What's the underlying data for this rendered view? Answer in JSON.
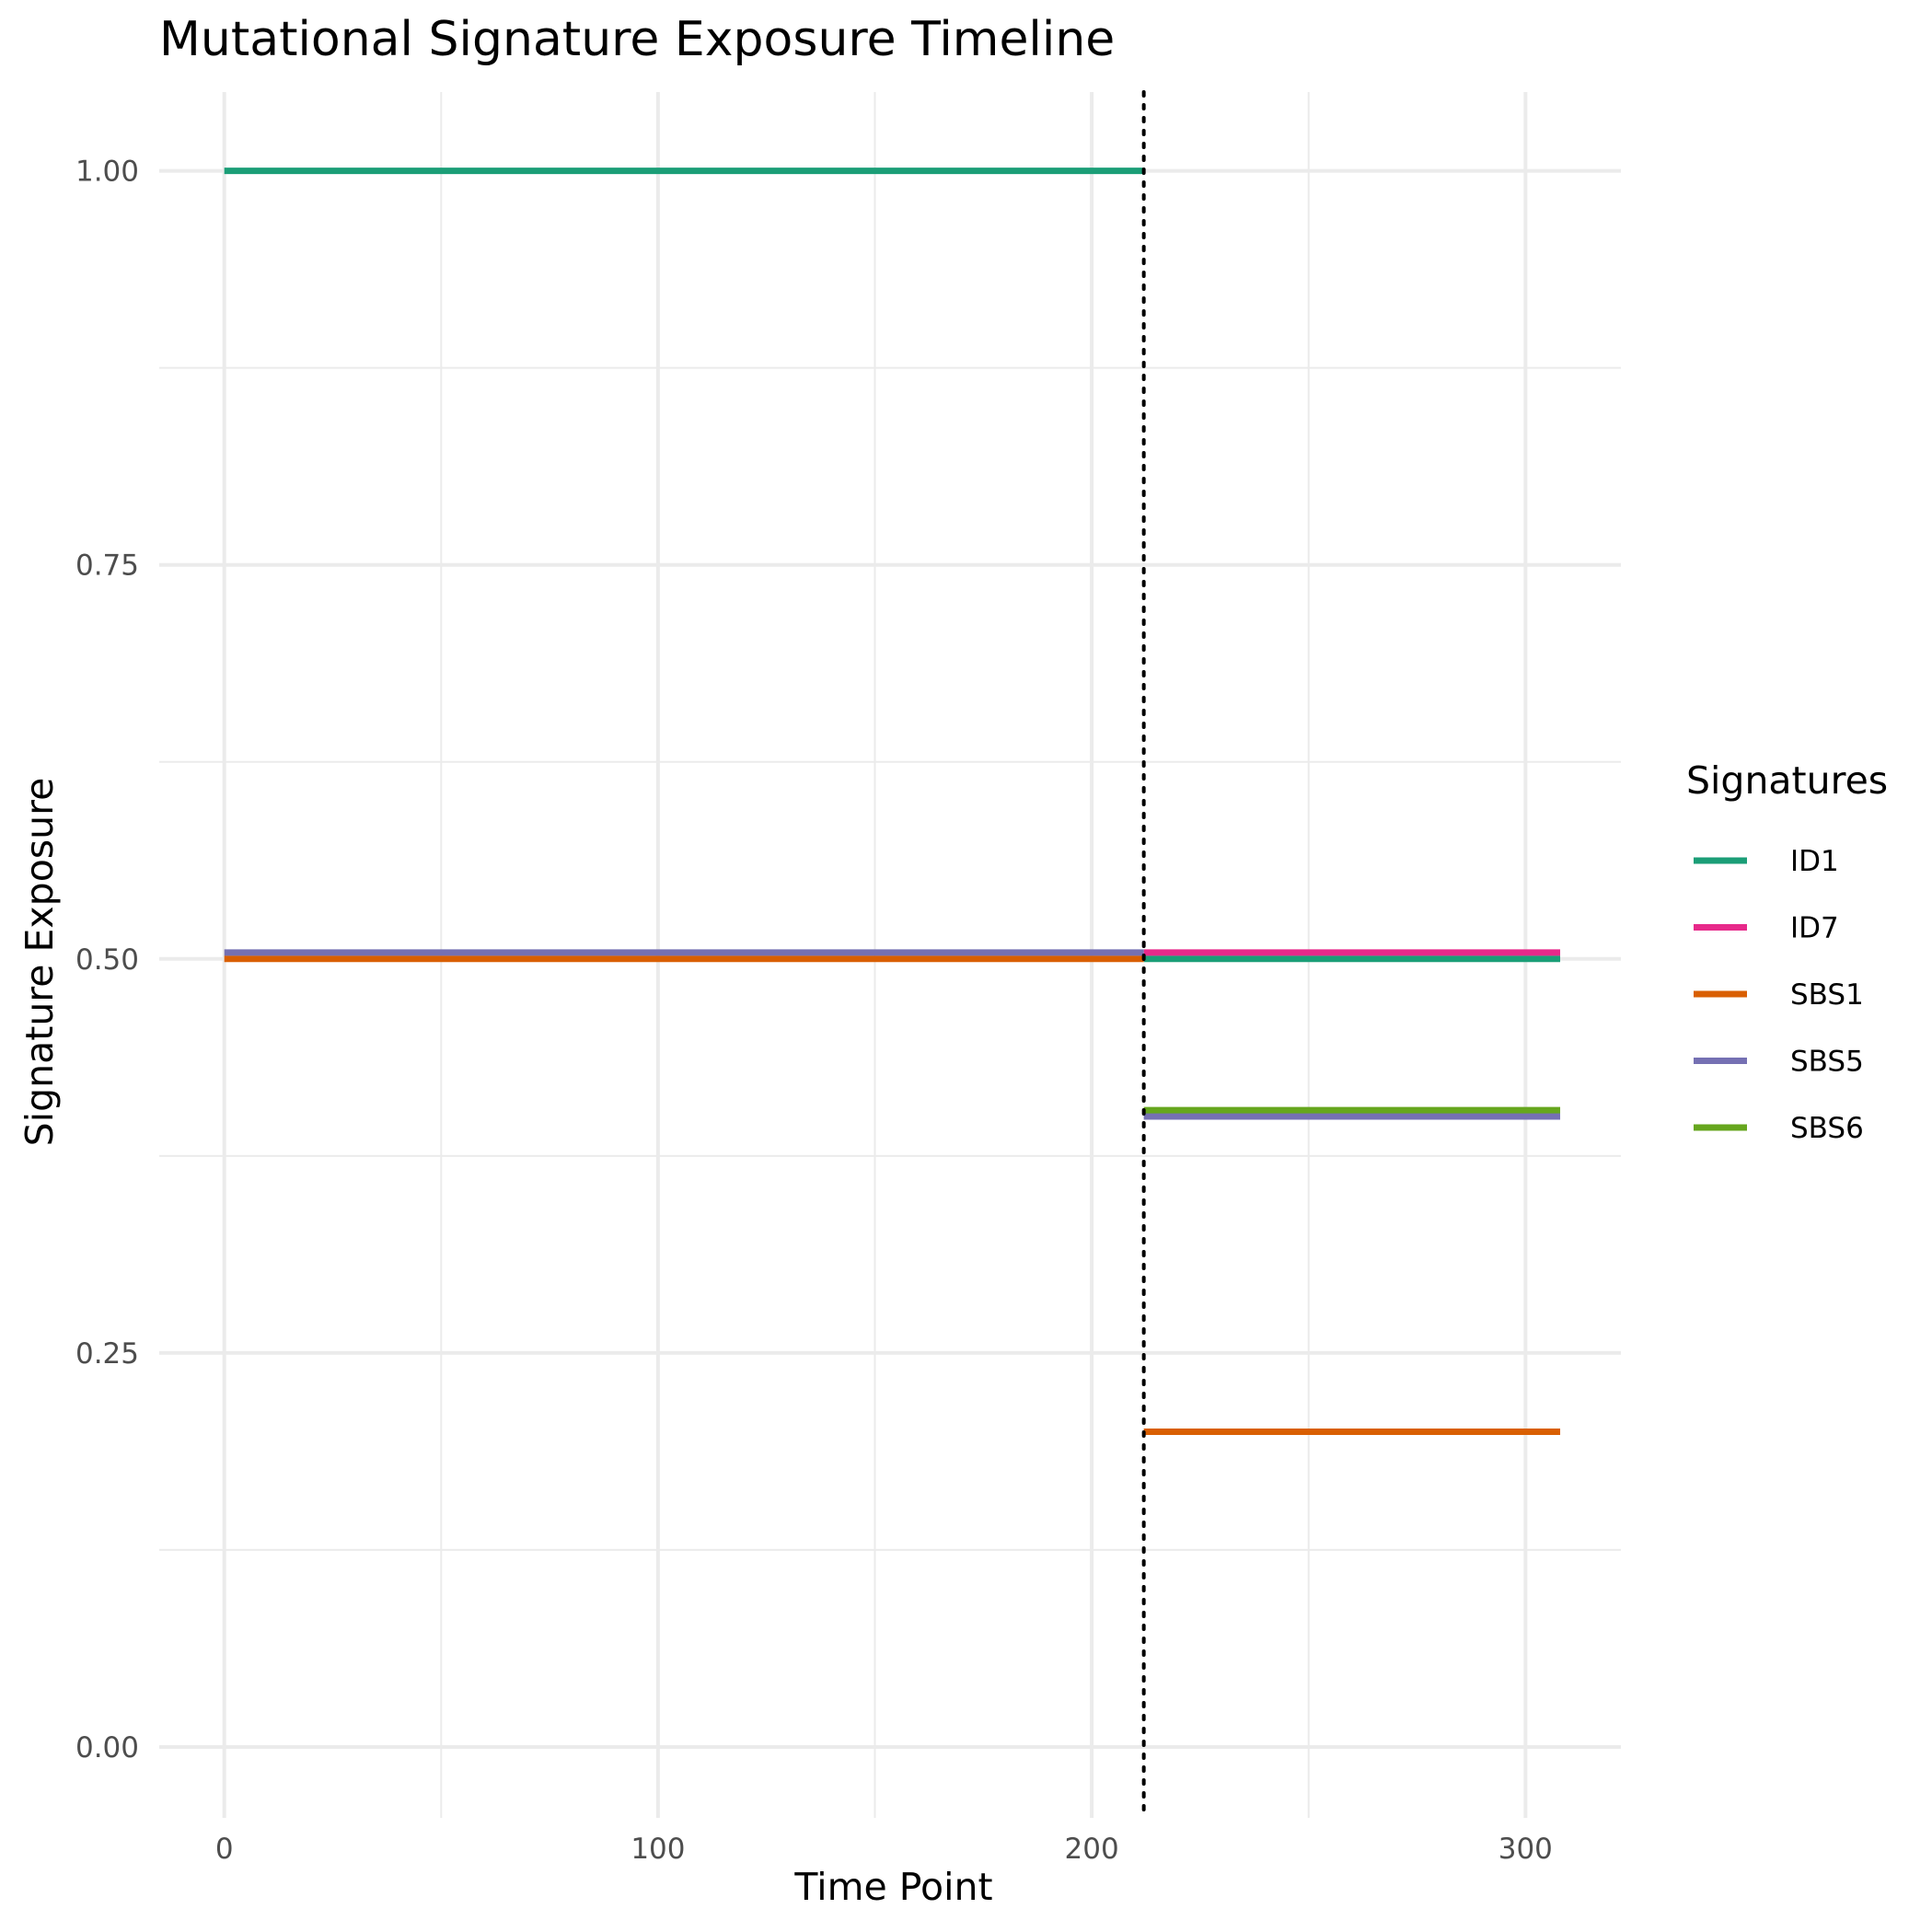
{
  "chart_data": {
    "type": "line",
    "title": "Mutational Signature Exposure Timeline",
    "xlabel": "Time Point",
    "ylabel": "Signature Exposure",
    "xlim": [
      -15,
      322
    ],
    "ylim": [
      -0.045,
      1.05
    ],
    "x_ticks": [
      0,
      100,
      200,
      300
    ],
    "y_ticks": [
      0,
      0.25,
      0.5,
      0.75,
      1
    ],
    "y_tick_labels": [
      "0.00",
      "0.25",
      "0.50",
      "0.75",
      "1.00"
    ],
    "x_minor_ticks": [
      50,
      150,
      250
    ],
    "y_minor_ticks": [
      0.125,
      0.375,
      0.625,
      0.875
    ],
    "grid": true,
    "change_point": 212,
    "legend": {
      "title": "Signatures",
      "position": "right"
    },
    "series": [
      {
        "name": "ID1",
        "color": "#1B9E77",
        "segments": [
          {
            "x": [
              0,
              212
            ],
            "y": [
              1.0,
              1.0
            ]
          },
          {
            "x": [
              212,
              308
            ],
            "y": [
              0.5,
              0.5
            ]
          }
        ]
      },
      {
        "name": "ID7",
        "color": "#E7298A",
        "segments": [
          {
            "x": [
              212,
              308
            ],
            "y": [
              0.504,
              0.504
            ]
          }
        ]
      },
      {
        "name": "SBS1",
        "color": "#D95F02",
        "segments": [
          {
            "x": [
              0,
              212
            ],
            "y": [
              0.5,
              0.5
            ]
          },
          {
            "x": [
              212,
              308
            ],
            "y": [
              0.2,
              0.2
            ]
          }
        ]
      },
      {
        "name": "SBS5",
        "color": "#7570B3",
        "segments": [
          {
            "x": [
              0,
              212
            ],
            "y": [
              0.504,
              0.504
            ]
          },
          {
            "x": [
              212,
              308
            ],
            "y": [
              0.4,
              0.4
            ]
          }
        ]
      },
      {
        "name": "SBS6",
        "color": "#66A61E",
        "segments": [
          {
            "x": [
              212,
              308
            ],
            "y": [
              0.404,
              0.404
            ]
          }
        ]
      }
    ]
  }
}
